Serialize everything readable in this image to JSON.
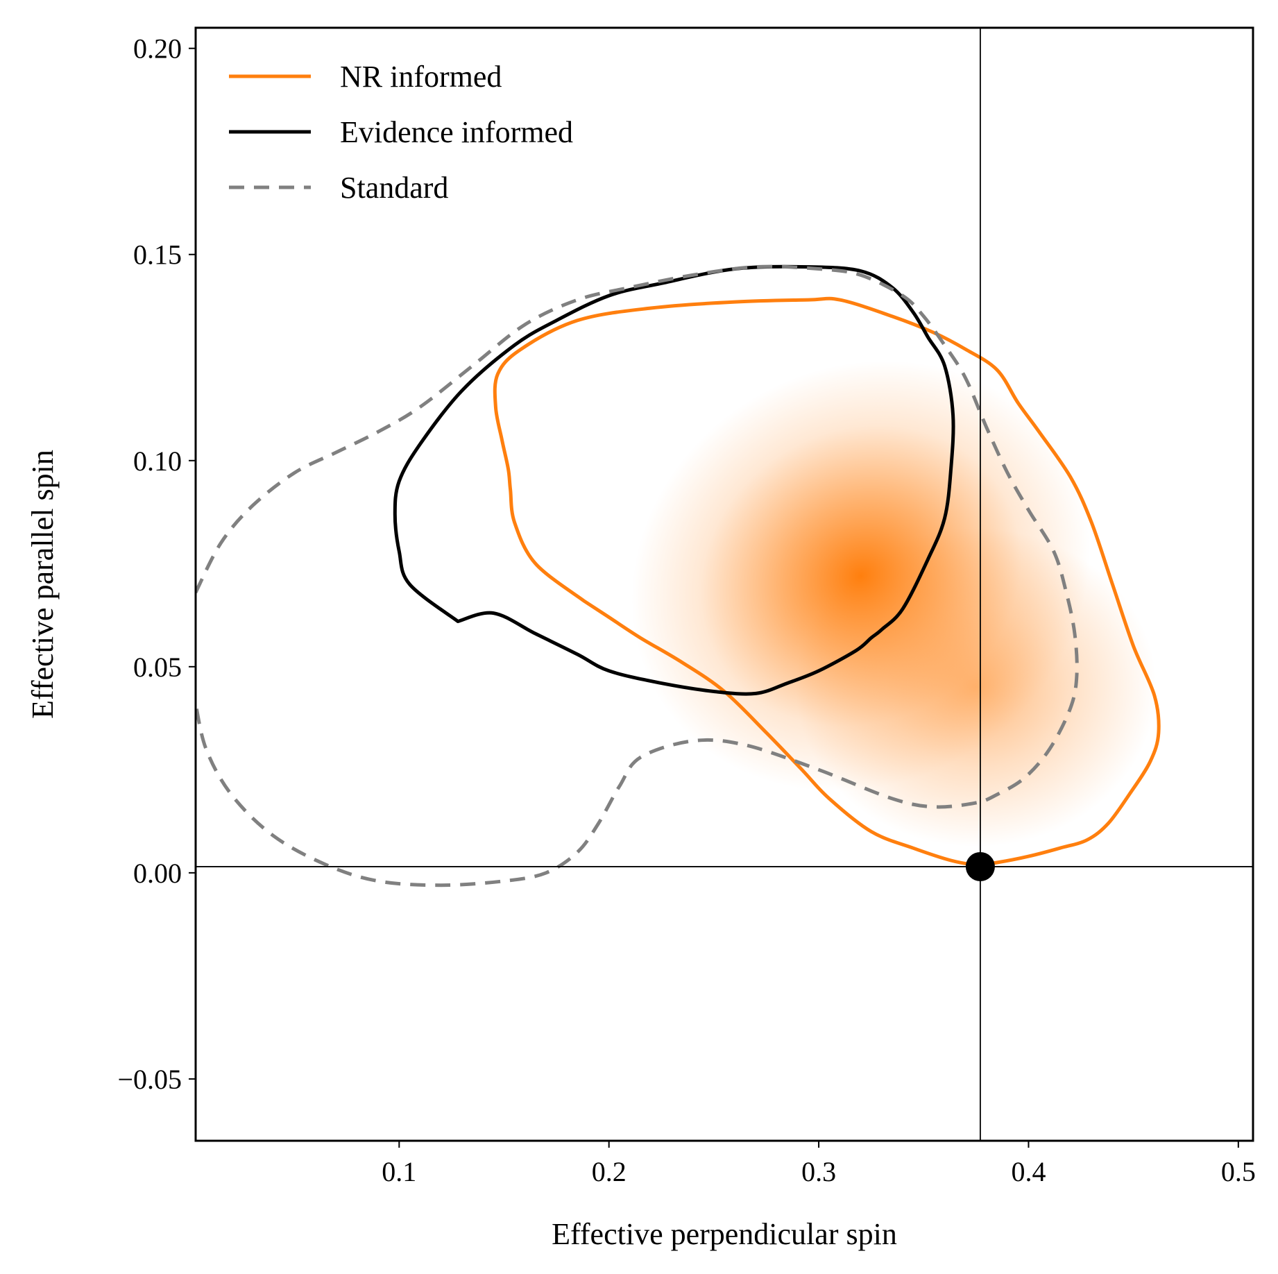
{
  "chart_data": {
    "type": "contour",
    "xlabel": "Effective perpendicular spin",
    "ylabel": "Effective parallel spin",
    "xlim": [
      0.003,
      0.507
    ],
    "ylim": [
      -0.065,
      0.205
    ],
    "xticks": [
      0.1,
      0.2,
      0.3,
      0.4,
      0.5
    ],
    "xtick_labels": [
      "0.1",
      "0.2",
      "0.3",
      "0.4",
      "0.5"
    ],
    "yticks": [
      -0.05,
      0.0,
      0.05,
      0.1,
      0.15,
      0.2
    ],
    "ytick_labels": [
      "−0.05",
      "0.00",
      "0.05",
      "0.10",
      "0.15",
      "0.20"
    ],
    "grid": false,
    "legend_position": "top-left",
    "colors": {
      "nr": "#ff7f0e",
      "evidence": "#000000",
      "standard": "#808080"
    },
    "legend": [
      {
        "label": "NR informed",
        "color": "#ff7f0e",
        "style": "solid"
      },
      {
        "label": "Evidence informed",
        "color": "#000000",
        "style": "solid"
      },
      {
        "label": "Standard",
        "color": "#808080",
        "style": "dashed"
      }
    ],
    "density": {
      "peak": [
        0.32,
        0.072
      ],
      "secondary_peak": [
        0.375,
        0.045
      ]
    },
    "reference_point": {
      "x": 0.377,
      "y": 0.0015
    },
    "series": [
      {
        "name": "NR informed",
        "color": "#ff7f0e",
        "style": "solid",
        "x": [
          0.188,
          0.165,
          0.155,
          0.153,
          0.152,
          0.149,
          0.146,
          0.147,
          0.158,
          0.185,
          0.22,
          0.26,
          0.295,
          0.31,
          0.335,
          0.355,
          0.37,
          0.385,
          0.395,
          0.405,
          0.42,
          0.43,
          0.44,
          0.45,
          0.46,
          0.462,
          0.458,
          0.448,
          0.438,
          0.428,
          0.415,
          0.4,
          0.385,
          0.375,
          0.363,
          0.345,
          0.325,
          0.305,
          0.292,
          0.275,
          0.255,
          0.235,
          0.215,
          0.2,
          0.188
        ],
        "y": [
          0.066,
          0.075,
          0.085,
          0.093,
          0.098,
          0.105,
          0.113,
          0.121,
          0.127,
          0.134,
          0.137,
          0.1385,
          0.139,
          0.139,
          0.135,
          0.131,
          0.127,
          0.122,
          0.114,
          0.107,
          0.096,
          0.085,
          0.07,
          0.055,
          0.043,
          0.034,
          0.027,
          0.019,
          0.012,
          0.008,
          0.006,
          0.004,
          0.0025,
          0.002,
          0.003,
          0.006,
          0.01,
          0.018,
          0.025,
          0.034,
          0.044,
          0.051,
          0.057,
          0.062,
          0.066
        ]
      },
      {
        "name": "Evidence informed",
        "color": "#000000",
        "style": "solid",
        "x": [
          0.128,
          0.105,
          0.1,
          0.098,
          0.1,
          0.11,
          0.13,
          0.155,
          0.175,
          0.2,
          0.225,
          0.26,
          0.295,
          0.32,
          0.335,
          0.345,
          0.352,
          0.36,
          0.364,
          0.363,
          0.36,
          0.352,
          0.34,
          0.33,
          0.325,
          0.318,
          0.3,
          0.285,
          0.27,
          0.25,
          0.225,
          0.2,
          0.185,
          0.165,
          0.145,
          0.128
        ],
        "y": [
          0.061,
          0.07,
          0.078,
          0.087,
          0.095,
          0.104,
          0.117,
          0.128,
          0.134,
          0.14,
          0.143,
          0.1465,
          0.147,
          0.146,
          0.142,
          0.136,
          0.13,
          0.123,
          0.111,
          0.098,
          0.086,
          0.076,
          0.064,
          0.059,
          0.057,
          0.054,
          0.049,
          0.046,
          0.0435,
          0.044,
          0.046,
          0.049,
          0.053,
          0.058,
          0.063,
          0.061
        ]
      },
      {
        "name": "Standard",
        "color": "#808080",
        "style": "dashed",
        "x": [
          0.003,
          0.015,
          0.03,
          0.05,
          0.07,
          0.09,
          0.11,
          0.135,
          0.16,
          0.185,
          0.21,
          0.24,
          0.27,
          0.3,
          0.32,
          0.34,
          0.35,
          0.36,
          0.37,
          0.38,
          0.39,
          0.4,
          0.412,
          0.418,
          0.422,
          0.423,
          0.42,
          0.41,
          0.398,
          0.385,
          0.375,
          0.355,
          0.335,
          0.3,
          0.265,
          0.24,
          0.215,
          0.205,
          0.195,
          0.185,
          0.17,
          0.15,
          0.12,
          0.09,
          0.065,
          0.04,
          0.02,
          0.008,
          0.003
        ],
        "y": [
          0.068,
          0.08,
          0.089,
          0.097,
          0.102,
          0.107,
          0.113,
          0.123,
          0.133,
          0.139,
          0.142,
          0.145,
          0.147,
          0.1465,
          0.145,
          0.14,
          0.135,
          0.128,
          0.12,
          0.108,
          0.097,
          0.088,
          0.078,
          0.068,
          0.058,
          0.048,
          0.04,
          0.03,
          0.023,
          0.019,
          0.017,
          0.016,
          0.018,
          0.025,
          0.031,
          0.032,
          0.028,
          0.021,
          0.012,
          0.005,
          0.0,
          -0.002,
          -0.003,
          -0.002,
          0.002,
          0.009,
          0.019,
          0.03,
          0.041
        ]
      }
    ]
  }
}
